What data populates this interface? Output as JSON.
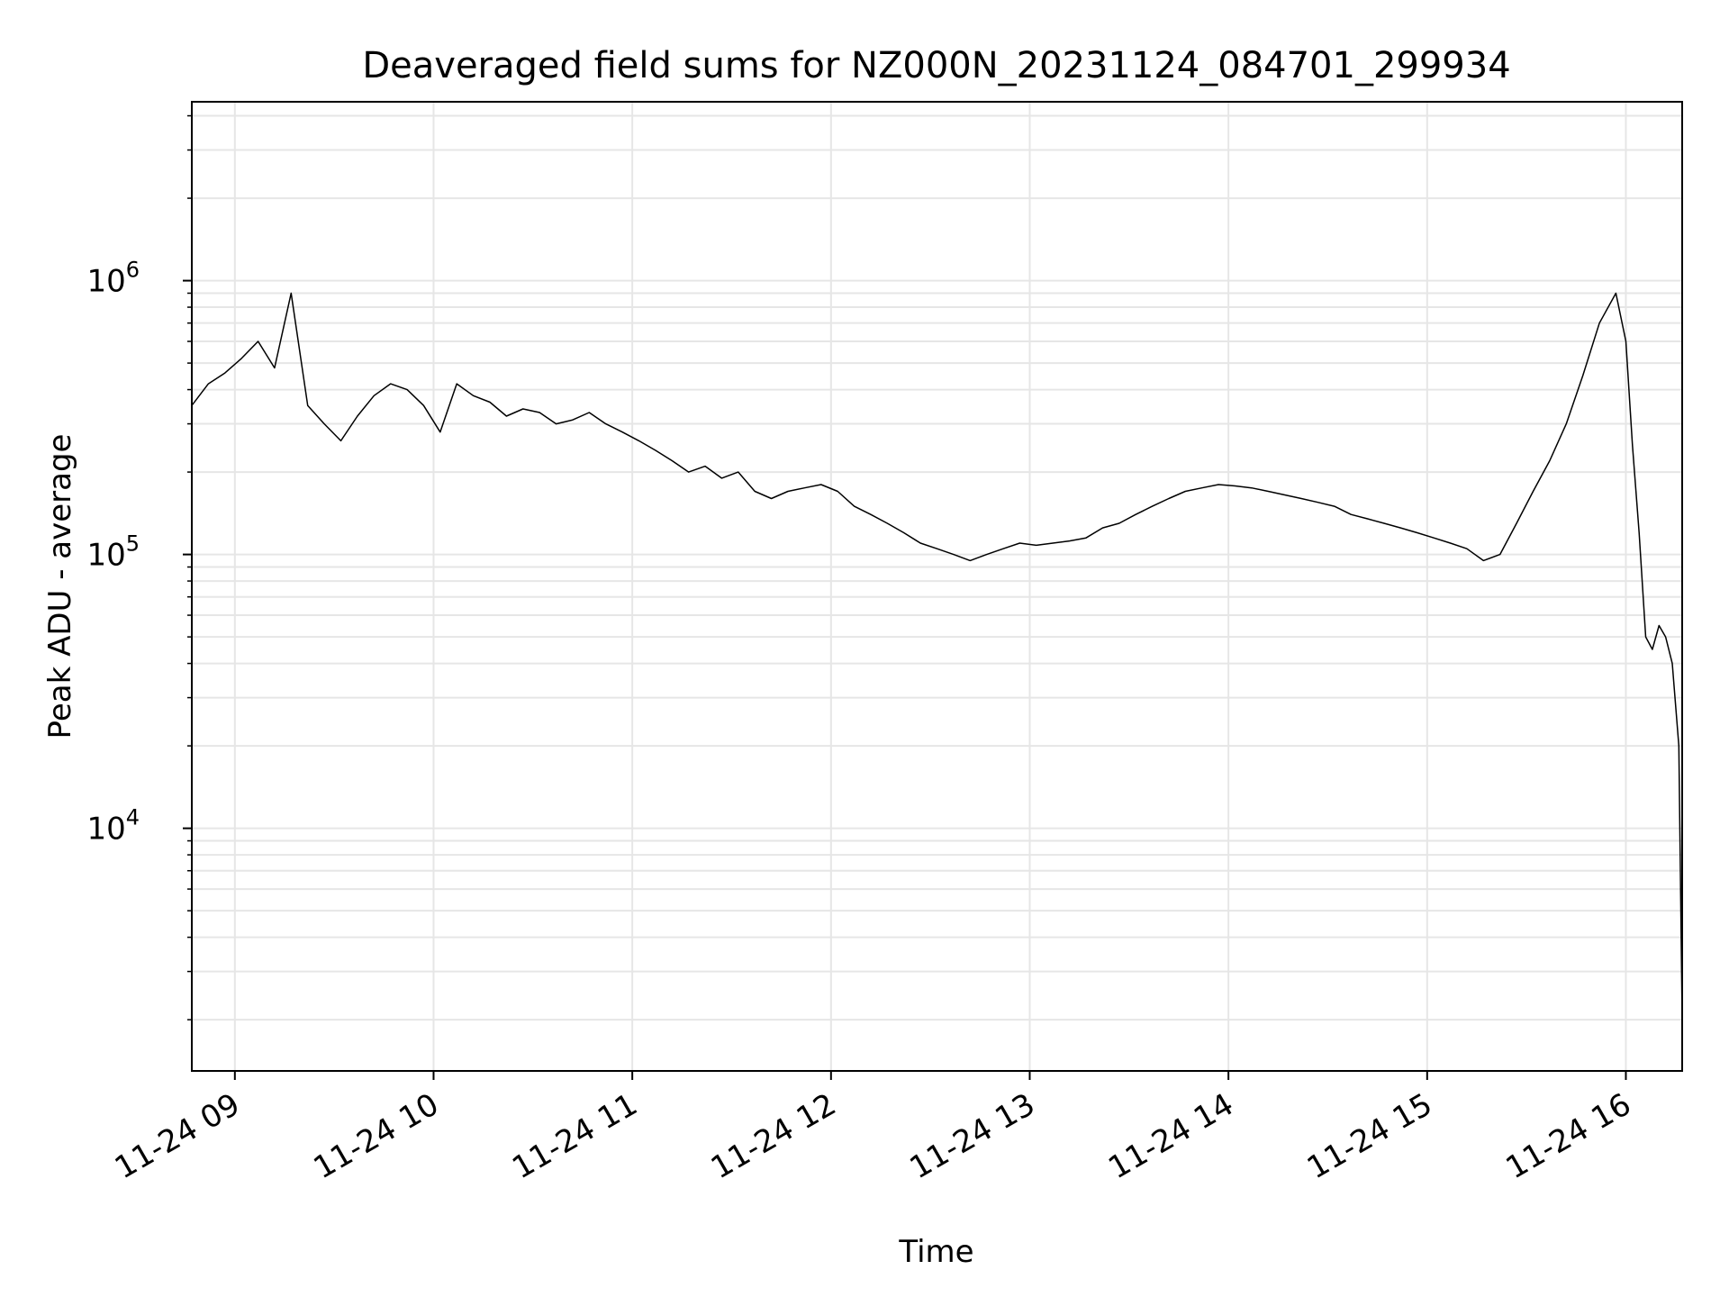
{
  "chart_data": {
    "type": "line",
    "title": "Deaveraged field sums for NZ000N_20231124_084701_299934",
    "xlabel": "Time",
    "ylabel": "Peak ADU - average",
    "y_scale": "log",
    "ylim": [
      1300,
      4500000
    ],
    "xlim": [
      "2023-11-24 08:47",
      "2023-11-24 16:17"
    ],
    "grid": true,
    "legend": "none",
    "line_color": "#000000",
    "grid_color": "#e6e6e6",
    "x_ticks": [
      {
        "value": "2023-11-24 09:00",
        "label": "11-24 09"
      },
      {
        "value": "2023-11-24 10:00",
        "label": "11-24 10"
      },
      {
        "value": "2023-11-24 11:00",
        "label": "11-24 11"
      },
      {
        "value": "2023-11-24 12:00",
        "label": "11-24 12"
      },
      {
        "value": "2023-11-24 13:00",
        "label": "11-24 13"
      },
      {
        "value": "2023-11-24 14:00",
        "label": "11-24 14"
      },
      {
        "value": "2023-11-24 15:00",
        "label": "11-24 15"
      },
      {
        "value": "2023-11-24 16:00",
        "label": "11-24 16"
      }
    ],
    "y_ticks": [
      {
        "value": 10000,
        "base": "10",
        "exp": "4"
      },
      {
        "value": 100000,
        "base": "10",
        "exp": "5"
      },
      {
        "value": 1000000,
        "base": "10",
        "exp": "6"
      }
    ],
    "series": [
      {
        "x": [
          "2023-11-24 08:47",
          "2023-11-24 08:52",
          "2023-11-24 08:57",
          "2023-11-24 09:02",
          "2023-11-24 09:07",
          "2023-11-24 09:12",
          "2023-11-24 09:17",
          "2023-11-24 09:22",
          "2023-11-24 09:27",
          "2023-11-24 09:32",
          "2023-11-24 09:37",
          "2023-11-24 09:42",
          "2023-11-24 09:47",
          "2023-11-24 09:52",
          "2023-11-24 09:57",
          "2023-11-24 10:02",
          "2023-11-24 10:07",
          "2023-11-24 10:12",
          "2023-11-24 10:17",
          "2023-11-24 10:22",
          "2023-11-24 10:27",
          "2023-11-24 10:32",
          "2023-11-24 10:37",
          "2023-11-24 10:42",
          "2023-11-24 10:47",
          "2023-11-24 10:52",
          "2023-11-24 10:57",
          "2023-11-24 11:02",
          "2023-11-24 11:07",
          "2023-11-24 11:12",
          "2023-11-24 11:17",
          "2023-11-24 11:22",
          "2023-11-24 11:27",
          "2023-11-24 11:32",
          "2023-11-24 11:37",
          "2023-11-24 11:42",
          "2023-11-24 11:47",
          "2023-11-24 11:52",
          "2023-11-24 11:57",
          "2023-11-24 12:02",
          "2023-11-24 12:07",
          "2023-11-24 12:12",
          "2023-11-24 12:17",
          "2023-11-24 12:22",
          "2023-11-24 12:27",
          "2023-11-24 12:32",
          "2023-11-24 12:37",
          "2023-11-24 12:42",
          "2023-11-24 12:47",
          "2023-11-24 12:52",
          "2023-11-24 12:57",
          "2023-11-24 13:02",
          "2023-11-24 13:07",
          "2023-11-24 13:12",
          "2023-11-24 13:17",
          "2023-11-24 13:22",
          "2023-11-24 13:27",
          "2023-11-24 13:32",
          "2023-11-24 13:37",
          "2023-11-24 13:42",
          "2023-11-24 13:47",
          "2023-11-24 13:52",
          "2023-11-24 13:57",
          "2023-11-24 14:02",
          "2023-11-24 14:07",
          "2023-11-24 14:12",
          "2023-11-24 14:17",
          "2023-11-24 14:22",
          "2023-11-24 14:27",
          "2023-11-24 14:32",
          "2023-11-24 14:37",
          "2023-11-24 14:42",
          "2023-11-24 14:47",
          "2023-11-24 14:52",
          "2023-11-24 14:57",
          "2023-11-24 15:02",
          "2023-11-24 15:07",
          "2023-11-24 15:12",
          "2023-11-24 15:17",
          "2023-11-24 15:22",
          "2023-11-24 15:27",
          "2023-11-24 15:32",
          "2023-11-24 15:37",
          "2023-11-24 15:42",
          "2023-11-24 15:47",
          "2023-11-24 15:52",
          "2023-11-24 15:57",
          "2023-11-24 16:00",
          "2023-11-24 16:02",
          "2023-11-24 16:04",
          "2023-11-24 16:06",
          "2023-11-24 16:08",
          "2023-11-24 16:10",
          "2023-11-24 16:12",
          "2023-11-24 16:14",
          "2023-11-24 16:16",
          "2023-11-24 16:17"
        ],
        "values": [
          350000,
          420000,
          460000,
          520000,
          600000,
          480000,
          900000,
          350000,
          300000,
          260000,
          320000,
          380000,
          420000,
          400000,
          350000,
          280000,
          420000,
          380000,
          360000,
          320000,
          340000,
          330000,
          300000,
          310000,
          330000,
          300000,
          280000,
          260000,
          240000,
          220000,
          200000,
          210000,
          190000,
          200000,
          170000,
          160000,
          170000,
          175000,
          180000,
          170000,
          150000,
          140000,
          130000,
          120000,
          110000,
          105000,
          100000,
          95000,
          100000,
          105000,
          110000,
          108000,
          110000,
          112000,
          115000,
          125000,
          130000,
          140000,
          150000,
          160000,
          170000,
          175000,
          180000,
          178000,
          175000,
          170000,
          165000,
          160000,
          155000,
          150000,
          140000,
          135000,
          130000,
          125000,
          120000,
          115000,
          110000,
          105000,
          95000,
          100000,
          130000,
          170000,
          220000,
          300000,
          450000,
          700000,
          900000,
          600000,
          250000,
          120000,
          50000,
          45000,
          55000,
          50000,
          40000,
          20000,
          2000
        ]
      }
    ]
  }
}
